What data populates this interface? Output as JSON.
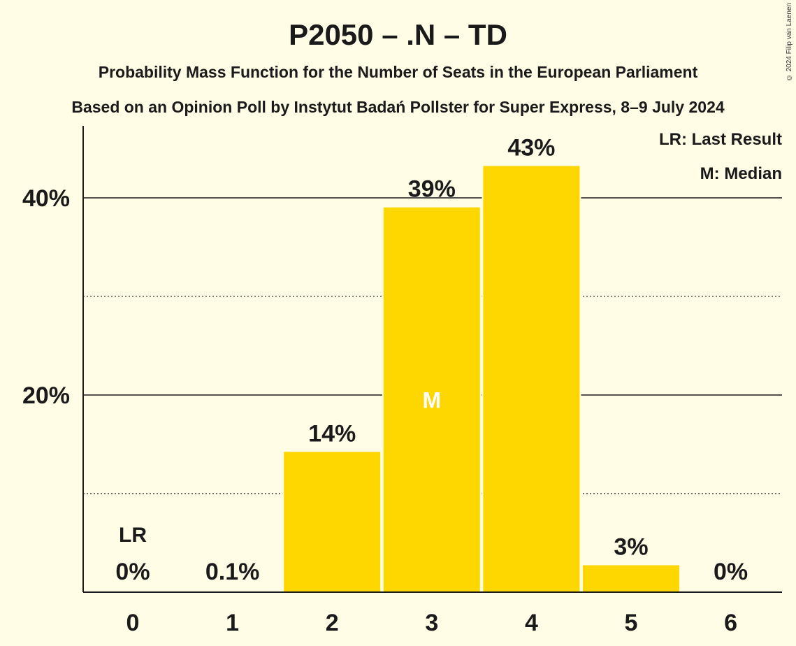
{
  "title": "P2050 – .N – TD",
  "subtitle1": "Probability Mass Function for the Number of Seats in the European Parliament",
  "subtitle2": "Based on an Opinion Poll by Instytut Badań Pollster for Super Express, 8–9 July 2024",
  "copyright": "© 2024 Filip van Laenen",
  "legend": {
    "last_result": "LR: Last Result",
    "median": "M: Median"
  },
  "colors": {
    "bar": "#FFD700",
    "background": "#FFFDE6",
    "text": "#1a1a1a",
    "median_marker": "#FFFFFF"
  },
  "chart_data": {
    "type": "bar",
    "categories": [
      "0",
      "1",
      "2",
      "3",
      "4",
      "5",
      "6"
    ],
    "values": [
      0,
      0.1,
      14.3,
      39.1,
      43.3,
      2.8,
      0
    ],
    "value_labels": [
      "0%",
      "0.1%",
      "14%",
      "39%",
      "43%",
      "3%",
      "0%"
    ],
    "y_ticks": [
      20,
      40
    ],
    "y_tick_labels": [
      "20%",
      "40%"
    ],
    "y_minor_ticks": [
      10,
      30
    ],
    "ylim": [
      0,
      47.3
    ],
    "last_result_category": "0",
    "last_result_label": "LR",
    "median_category": "3",
    "median_label": "M",
    "grid": true
  }
}
